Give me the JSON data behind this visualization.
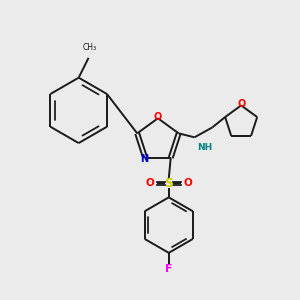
{
  "bg_color": "#ebebeb",
  "bond_color": "#1a1a1a",
  "colors": {
    "N": "#0000cc",
    "O": "#ff0000",
    "S": "#cccc00",
    "F": "#ff00ff",
    "NH": "#008080",
    "C": "#1a1a1a"
  },
  "figsize": [
    3.0,
    3.0
  ],
  "dpi": 100
}
